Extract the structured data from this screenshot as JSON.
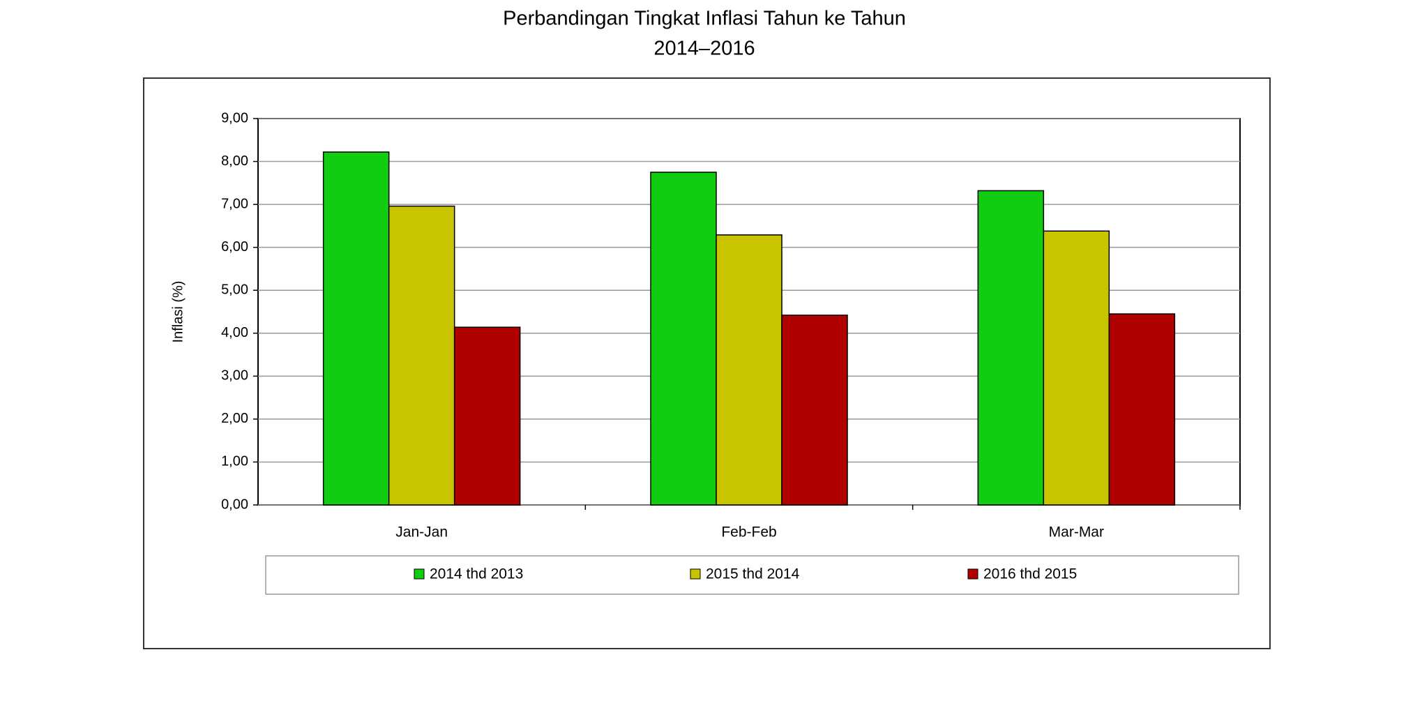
{
  "chart_data": {
    "type": "bar",
    "title": "Perbandingan Tingkat Inflasi Tahun ke Tahun",
    "subtitle": "2014–2016",
    "y_label": "Inflasi (%)",
    "categories": [
      "Jan-Jan",
      "Feb-Feb",
      "Mar-Mar"
    ],
    "series": [
      {
        "name": "2014 thd 2013",
        "color": "#11cc11",
        "values": [
          8.22,
          7.75,
          7.32
        ]
      },
      {
        "name": "2015 thd 2014",
        "color": "#c8c400",
        "values": [
          6.96,
          6.29,
          6.38
        ]
      },
      {
        "name": "2016 thd 2015",
        "color": "#b00000",
        "values": [
          4.14,
          4.42,
          4.45
        ]
      }
    ],
    "ylim": [
      0,
      9
    ],
    "yticks": [
      {
        "value": 0,
        "label": "0,00"
      },
      {
        "value": 1,
        "label": "1,00"
      },
      {
        "value": 2,
        "label": "2,00"
      },
      {
        "value": 3,
        "label": "3,00"
      },
      {
        "value": 4,
        "label": "4,00"
      },
      {
        "value": 5,
        "label": "5,00"
      },
      {
        "value": 6,
        "label": "6,00"
      },
      {
        "value": 7,
        "label": "7,00"
      },
      {
        "value": 8,
        "label": "8,00"
      },
      {
        "value": 9,
        "label": "9,00"
      }
    ],
    "grid": true,
    "legend": "bottom"
  }
}
